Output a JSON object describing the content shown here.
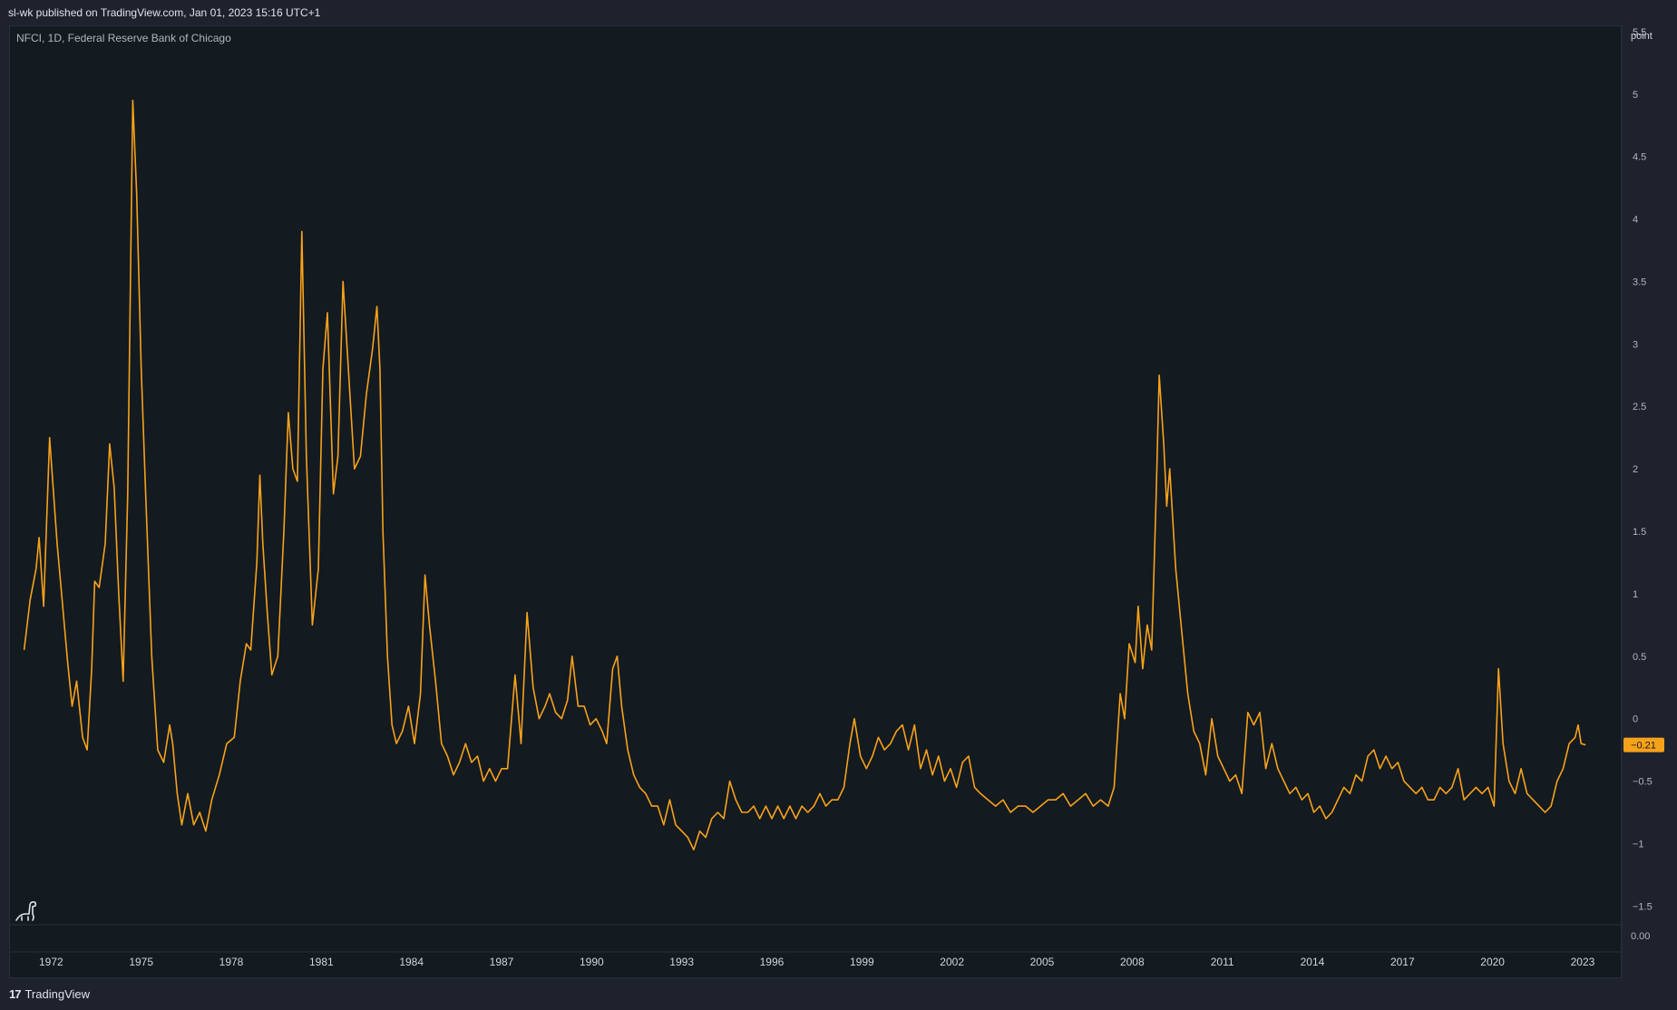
{
  "header": {
    "published": "sl-wk published on TradingView.com, Jan 01, 2023 15:16 UTC+1"
  },
  "legend": {
    "text": "NFCI, 1D, Federal Reserve Bank of Chicago"
  },
  "footer": {
    "brand_logo": "17",
    "brand": "TradingView"
  },
  "icons": {
    "logo": "tradingview-logo-icon",
    "mascot": "dinosaur-mascot-icon"
  },
  "colors": {
    "line": "#f7a21b",
    "background": "#131a20",
    "price_label": "#f7a21b"
  },
  "chart_data": {
    "type": "line",
    "title": "",
    "xlabel": "",
    "ylabel": "point",
    "x_ticks": [
      "1972",
      "1975",
      "1978",
      "1981",
      "1984",
      "1987",
      "1990",
      "1993",
      "1996",
      "1999",
      "2002",
      "2005",
      "2008",
      "2011",
      "2014",
      "2017",
      "2020",
      "2023"
    ],
    "y_ticks": [
      "−1.5",
      "−1",
      "−0.5",
      "0",
      "0.5",
      "1",
      "1.5",
      "2",
      "2.5",
      "3",
      "3.5",
      "4",
      "4.5",
      "5",
      "5.5"
    ],
    "ylim": [
      -1.65,
      5.55
    ],
    "xlim": [
      1970.6,
      2024.3
    ],
    "sub_pane_label": "0.00",
    "last_value_label": "−0.21",
    "series": [
      {
        "values": [
          [
            1971.1,
            0.55
          ],
          [
            1971.3,
            0.95
          ],
          [
            1971.5,
            1.2
          ],
          [
            1971.6,
            1.45
          ],
          [
            1971.75,
            0.9
          ],
          [
            1971.95,
            2.25
          ],
          [
            1972.2,
            1.4
          ],
          [
            1972.35,
            1.0
          ],
          [
            1972.55,
            0.45
          ],
          [
            1972.7,
            0.1
          ],
          [
            1972.85,
            0.3
          ],
          [
            1973.05,
            -0.15
          ],
          [
            1973.2,
            -0.25
          ],
          [
            1973.35,
            0.4
          ],
          [
            1973.45,
            1.1
          ],
          [
            1973.6,
            1.05
          ],
          [
            1973.8,
            1.4
          ],
          [
            1973.95,
            2.2
          ],
          [
            1974.1,
            1.85
          ],
          [
            1974.25,
            1.0
          ],
          [
            1974.4,
            0.3
          ],
          [
            1974.55,
            1.8
          ],
          [
            1974.72,
            4.95
          ],
          [
            1974.85,
            4.2
          ],
          [
            1975.0,
            2.8
          ],
          [
            1975.15,
            1.8
          ],
          [
            1975.35,
            0.5
          ],
          [
            1975.55,
            -0.25
          ],
          [
            1975.75,
            -0.35
          ],
          [
            1975.95,
            -0.05
          ],
          [
            1976.05,
            -0.2
          ],
          [
            1976.2,
            -0.6
          ],
          [
            1976.35,
            -0.85
          ],
          [
            1976.55,
            -0.6
          ],
          [
            1976.75,
            -0.85
          ],
          [
            1976.95,
            -0.75
          ],
          [
            1977.15,
            -0.9
          ],
          [
            1977.35,
            -0.65
          ],
          [
            1977.6,
            -0.45
          ],
          [
            1977.85,
            -0.2
          ],
          [
            1978.1,
            -0.15
          ],
          [
            1978.3,
            0.3
          ],
          [
            1978.5,
            0.6
          ],
          [
            1978.65,
            0.55
          ],
          [
            1978.85,
            1.25
          ],
          [
            1978.95,
            1.95
          ],
          [
            1979.05,
            1.4
          ],
          [
            1979.2,
            0.85
          ],
          [
            1979.35,
            0.35
          ],
          [
            1979.55,
            0.5
          ],
          [
            1979.75,
            1.5
          ],
          [
            1979.9,
            2.45
          ],
          [
            1980.05,
            2.0
          ],
          [
            1980.2,
            1.9
          ],
          [
            1980.35,
            3.9
          ],
          [
            1980.5,
            2.1
          ],
          [
            1980.7,
            0.75
          ],
          [
            1980.9,
            1.2
          ],
          [
            1981.05,
            2.8
          ],
          [
            1981.2,
            3.25
          ],
          [
            1981.4,
            1.8
          ],
          [
            1981.55,
            2.1
          ],
          [
            1981.72,
            3.5
          ],
          [
            1981.9,
            2.8
          ],
          [
            1982.1,
            2.0
          ],
          [
            1982.3,
            2.1
          ],
          [
            1982.5,
            2.6
          ],
          [
            1982.7,
            2.95
          ],
          [
            1982.85,
            3.3
          ],
          [
            1982.95,
            2.8
          ],
          [
            1983.05,
            1.5
          ],
          [
            1983.2,
            0.5
          ],
          [
            1983.35,
            -0.05
          ],
          [
            1983.5,
            -0.2
          ],
          [
            1983.7,
            -0.1
          ],
          [
            1983.9,
            0.1
          ],
          [
            1984.1,
            -0.2
          ],
          [
            1984.3,
            0.2
          ],
          [
            1984.45,
            1.15
          ],
          [
            1984.6,
            0.75
          ],
          [
            1984.8,
            0.3
          ],
          [
            1985.0,
            -0.2
          ],
          [
            1985.2,
            -0.3
          ],
          [
            1985.4,
            -0.45
          ],
          [
            1985.6,
            -0.35
          ],
          [
            1985.8,
            -0.2
          ],
          [
            1986.0,
            -0.35
          ],
          [
            1986.2,
            -0.3
          ],
          [
            1986.4,
            -0.5
          ],
          [
            1986.6,
            -0.4
          ],
          [
            1986.8,
            -0.5
          ],
          [
            1987.0,
            -0.4
          ],
          [
            1987.2,
            -0.4
          ],
          [
            1987.45,
            0.35
          ],
          [
            1987.65,
            -0.2
          ],
          [
            1987.85,
            0.85
          ],
          [
            1988.05,
            0.25
          ],
          [
            1988.25,
            0.0
          ],
          [
            1988.45,
            0.1
          ],
          [
            1988.6,
            0.2
          ],
          [
            1988.8,
            0.05
          ],
          [
            1989.0,
            0.0
          ],
          [
            1989.2,
            0.15
          ],
          [
            1989.35,
            0.5
          ],
          [
            1989.55,
            0.1
          ],
          [
            1989.75,
            0.1
          ],
          [
            1989.95,
            -0.05
          ],
          [
            1990.15,
            0.0
          ],
          [
            1990.35,
            -0.1
          ],
          [
            1990.5,
            -0.2
          ],
          [
            1990.7,
            0.4
          ],
          [
            1990.85,
            0.5
          ],
          [
            1991.0,
            0.1
          ],
          [
            1991.2,
            -0.25
          ],
          [
            1991.4,
            -0.45
          ],
          [
            1991.6,
            -0.55
          ],
          [
            1991.8,
            -0.6
          ],
          [
            1992.0,
            -0.7
          ],
          [
            1992.2,
            -0.7
          ],
          [
            1992.4,
            -0.85
          ],
          [
            1992.6,
            -0.65
          ],
          [
            1992.8,
            -0.85
          ],
          [
            1993.0,
            -0.9
          ],
          [
            1993.2,
            -0.95
          ],
          [
            1993.4,
            -1.05
          ],
          [
            1993.6,
            -0.9
          ],
          [
            1993.8,
            -0.95
          ],
          [
            1994.0,
            -0.8
          ],
          [
            1994.2,
            -0.75
          ],
          [
            1994.4,
            -0.8
          ],
          [
            1994.6,
            -0.5
          ],
          [
            1994.8,
            -0.65
          ],
          [
            1995.0,
            -0.75
          ],
          [
            1995.2,
            -0.75
          ],
          [
            1995.4,
            -0.7
          ],
          [
            1995.6,
            -0.8
          ],
          [
            1995.8,
            -0.7
          ],
          [
            1996.0,
            -0.8
          ],
          [
            1996.2,
            -0.7
          ],
          [
            1996.4,
            -0.8
          ],
          [
            1996.6,
            -0.7
          ],
          [
            1996.8,
            -0.8
          ],
          [
            1997.0,
            -0.7
          ],
          [
            1997.2,
            -0.75
          ],
          [
            1997.4,
            -0.7
          ],
          [
            1997.6,
            -0.6
          ],
          [
            1997.8,
            -0.7
          ],
          [
            1998.0,
            -0.65
          ],
          [
            1998.2,
            -0.65
          ],
          [
            1998.4,
            -0.55
          ],
          [
            1998.6,
            -0.2
          ],
          [
            1998.75,
            0.0
          ],
          [
            1998.95,
            -0.3
          ],
          [
            1999.15,
            -0.4
          ],
          [
            1999.35,
            -0.3
          ],
          [
            1999.55,
            -0.15
          ],
          [
            1999.75,
            -0.25
          ],
          [
            1999.95,
            -0.2
          ],
          [
            2000.15,
            -0.1
          ],
          [
            2000.35,
            -0.05
          ],
          [
            2000.55,
            -0.25
          ],
          [
            2000.75,
            -0.05
          ],
          [
            2000.95,
            -0.4
          ],
          [
            2001.15,
            -0.25
          ],
          [
            2001.35,
            -0.45
          ],
          [
            2001.55,
            -0.3
          ],
          [
            2001.75,
            -0.5
          ],
          [
            2001.95,
            -0.4
          ],
          [
            2002.15,
            -0.55
          ],
          [
            2002.35,
            -0.35
          ],
          [
            2002.55,
            -0.3
          ],
          [
            2002.75,
            -0.55
          ],
          [
            2002.95,
            -0.6
          ],
          [
            2003.2,
            -0.65
          ],
          [
            2003.45,
            -0.7
          ],
          [
            2003.7,
            -0.65
          ],
          [
            2003.95,
            -0.75
          ],
          [
            2004.2,
            -0.7
          ],
          [
            2004.45,
            -0.7
          ],
          [
            2004.7,
            -0.75
          ],
          [
            2004.95,
            -0.7
          ],
          [
            2005.2,
            -0.65
          ],
          [
            2005.45,
            -0.65
          ],
          [
            2005.7,
            -0.6
          ],
          [
            2005.95,
            -0.7
          ],
          [
            2006.2,
            -0.65
          ],
          [
            2006.45,
            -0.6
          ],
          [
            2006.7,
            -0.7
          ],
          [
            2006.95,
            -0.65
          ],
          [
            2007.2,
            -0.7
          ],
          [
            2007.4,
            -0.55
          ],
          [
            2007.6,
            0.2
          ],
          [
            2007.75,
            0.0
          ],
          [
            2007.9,
            0.6
          ],
          [
            2008.1,
            0.45
          ],
          [
            2008.2,
            0.9
          ],
          [
            2008.35,
            0.4
          ],
          [
            2008.5,
            0.75
          ],
          [
            2008.65,
            0.55
          ],
          [
            2008.8,
            1.8
          ],
          [
            2008.9,
            2.75
          ],
          [
            2009.05,
            2.2
          ],
          [
            2009.15,
            1.7
          ],
          [
            2009.25,
            2.0
          ],
          [
            2009.45,
            1.2
          ],
          [
            2009.65,
            0.7
          ],
          [
            2009.85,
            0.2
          ],
          [
            2010.05,
            -0.1
          ],
          [
            2010.25,
            -0.2
          ],
          [
            2010.45,
            -0.45
          ],
          [
            2010.65,
            0.0
          ],
          [
            2010.85,
            -0.3
          ],
          [
            2011.05,
            -0.4
          ],
          [
            2011.25,
            -0.5
          ],
          [
            2011.45,
            -0.45
          ],
          [
            2011.65,
            -0.6
          ],
          [
            2011.85,
            0.05
          ],
          [
            2012.05,
            -0.05
          ],
          [
            2012.25,
            0.05
          ],
          [
            2012.45,
            -0.4
          ],
          [
            2012.65,
            -0.2
          ],
          [
            2012.85,
            -0.4
          ],
          [
            2013.05,
            -0.5
          ],
          [
            2013.25,
            -0.6
          ],
          [
            2013.45,
            -0.55
          ],
          [
            2013.65,
            -0.65
          ],
          [
            2013.85,
            -0.6
          ],
          [
            2014.05,
            -0.75
          ],
          [
            2014.25,
            -0.7
          ],
          [
            2014.45,
            -0.8
          ],
          [
            2014.65,
            -0.75
          ],
          [
            2014.85,
            -0.65
          ],
          [
            2015.05,
            -0.55
          ],
          [
            2015.25,
            -0.6
          ],
          [
            2015.45,
            -0.45
          ],
          [
            2015.65,
            -0.5
          ],
          [
            2015.85,
            -0.3
          ],
          [
            2016.05,
            -0.25
          ],
          [
            2016.25,
            -0.4
          ],
          [
            2016.45,
            -0.3
          ],
          [
            2016.65,
            -0.4
          ],
          [
            2016.85,
            -0.35
          ],
          [
            2017.05,
            -0.5
          ],
          [
            2017.25,
            -0.55
          ],
          [
            2017.45,
            -0.6
          ],
          [
            2017.65,
            -0.55
          ],
          [
            2017.85,
            -0.65
          ],
          [
            2018.05,
            -0.65
          ],
          [
            2018.25,
            -0.55
          ],
          [
            2018.45,
            -0.6
          ],
          [
            2018.65,
            -0.55
          ],
          [
            2018.85,
            -0.4
          ],
          [
            2019.05,
            -0.65
          ],
          [
            2019.25,
            -0.6
          ],
          [
            2019.45,
            -0.55
          ],
          [
            2019.65,
            -0.6
          ],
          [
            2019.85,
            -0.55
          ],
          [
            2020.05,
            -0.7
          ],
          [
            2020.2,
            0.4
          ],
          [
            2020.35,
            -0.2
          ],
          [
            2020.55,
            -0.5
          ],
          [
            2020.75,
            -0.6
          ],
          [
            2020.95,
            -0.4
          ],
          [
            2021.15,
            -0.6
          ],
          [
            2021.35,
            -0.65
          ],
          [
            2021.55,
            -0.7
          ],
          [
            2021.75,
            -0.75
          ],
          [
            2021.95,
            -0.7
          ],
          [
            2022.15,
            -0.5
          ],
          [
            2022.35,
            -0.4
          ],
          [
            2022.55,
            -0.2
          ],
          [
            2022.75,
            -0.15
          ],
          [
            2022.85,
            -0.05
          ],
          [
            2022.95,
            -0.2
          ],
          [
            2023.1,
            -0.21
          ]
        ]
      }
    ]
  }
}
